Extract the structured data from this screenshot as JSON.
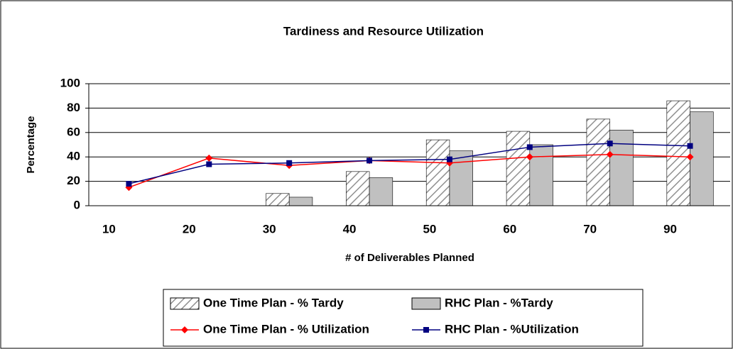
{
  "chart_data": {
    "type": "bar_line",
    "title": "Tardiness and Resource Utilization",
    "x_label": "# of Deliverables Planned",
    "y_label": "Percentage",
    "categories": [
      "10",
      "20",
      "30",
      "40",
      "50",
      "60",
      "70",
      "90"
    ],
    "series": [
      {
        "name": "One Time Plan - % Tardy",
        "kind": "bar",
        "color": "#ffffff",
        "pattern": "hatch",
        "values": [
          0,
          0,
          10,
          28,
          54,
          61,
          71,
          86
        ]
      },
      {
        "name": "RHC Plan - %Tardy",
        "kind": "bar",
        "color": "#c0c0c0",
        "values": [
          0,
          0,
          7,
          23,
          45,
          50,
          62,
          77
        ]
      },
      {
        "name": "One Time Plan - % Utilization",
        "kind": "line",
        "color": "#ff0000",
        "marker": "diamond",
        "values": [
          15,
          39,
          33,
          37,
          35,
          40,
          42,
          40
        ]
      },
      {
        "name": "RHC Plan - %Utilization",
        "kind": "line",
        "color": "#000080",
        "marker": "square",
        "values": [
          18,
          34,
          35,
          37,
          38,
          48,
          51,
          49
        ]
      }
    ],
    "ylim": [
      0,
      100
    ],
    "yticks": [
      0,
      20,
      40,
      60,
      80,
      100
    ],
    "grid": true
  }
}
